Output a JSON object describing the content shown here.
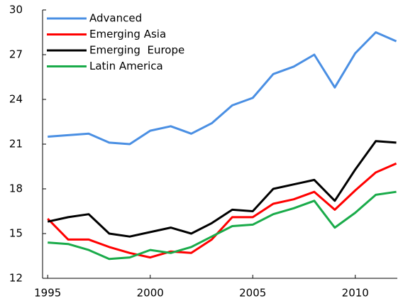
{
  "chart_data": {
    "type": "line",
    "x": [
      1995,
      1996,
      1997,
      1998,
      1999,
      2000,
      2001,
      2002,
      2003,
      2004,
      2005,
      2006,
      2007,
      2008,
      2009,
      2010,
      2011,
      2012
    ],
    "series": [
      {
        "name": "Advanced",
        "color": "#4a8fe3",
        "values": [
          21.5,
          21.6,
          21.7,
          21.1,
          21.0,
          21.9,
          22.2,
          21.7,
          22.4,
          23.6,
          24.1,
          25.7,
          26.2,
          27.0,
          24.8,
          27.1,
          28.5,
          27.9
        ]
      },
      {
        "name": "Emerging Asia",
        "color": "#ff0000",
        "values": [
          16.0,
          14.6,
          14.6,
          14.1,
          13.7,
          13.4,
          13.8,
          13.7,
          14.6,
          16.1,
          16.1,
          17.0,
          17.3,
          17.8,
          16.6,
          17.9,
          19.1,
          19.7
        ]
      },
      {
        "name": "Emerging  Europe",
        "color": "#000000",
        "values": [
          15.8,
          16.1,
          16.3,
          15.0,
          14.8,
          15.1,
          15.4,
          15.0,
          15.7,
          16.6,
          16.5,
          18.0,
          18.3,
          18.6,
          17.2,
          19.3,
          21.2,
          21.1
        ]
      },
      {
        "name": "Latin America",
        "color": "#1aab4a",
        "values": [
          14.4,
          14.3,
          13.9,
          13.3,
          13.4,
          13.9,
          13.7,
          14.1,
          14.8,
          15.5,
          15.6,
          16.3,
          16.7,
          17.2,
          15.4,
          16.4,
          17.6,
          17.8
        ]
      }
    ],
    "xlim": [
      1994.75,
      2012.05
    ],
    "xticks": [
      1995,
      2000,
      2005,
      2010
    ],
    "ylim": [
      12,
      30
    ],
    "yticks": [
      12,
      15,
      18,
      21,
      24,
      27,
      30
    ],
    "grid": false,
    "legend": "top-left"
  }
}
